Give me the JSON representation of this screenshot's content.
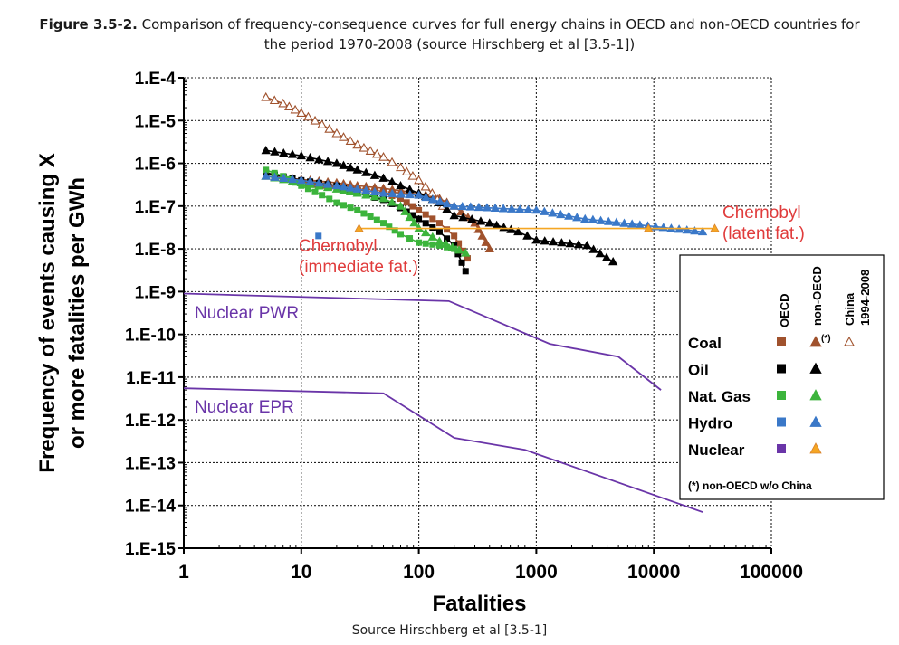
{
  "caption": {
    "figure_label": "Figure 3.5-2.",
    "text_line1": "Comparison of frequency-consequence curves for full energy chains in OECD and non-OECD countries for",
    "text_line2": "the period 1970-2008 (source Hirschberg et al [3.5-1])"
  },
  "footer": {
    "source": "Source Hirschberg et al [3.5-1]"
  },
  "chart_data": {
    "type": "line",
    "xlabel": "Fatalities",
    "ylabel_line1": "Frequency of events causing X",
    "ylabel_line2": "or more fatalities per GWh",
    "x_scale": "log",
    "y_scale": "log",
    "xlim": [
      1,
      100000
    ],
    "ylim": [
      1e-15,
      0.0001
    ],
    "grid": true,
    "x_ticks": [
      {
        "v": 1,
        "label": "1"
      },
      {
        "v": 10,
        "label": "10"
      },
      {
        "v": 100,
        "label": "100"
      },
      {
        "v": 1000,
        "label": "1000"
      },
      {
        "v": 10000,
        "label": "10000"
      },
      {
        "v": 100000,
        "label": "100000"
      }
    ],
    "y_ticks": [
      {
        "v": 0.0001,
        "label": "1.E-4"
      },
      {
        "v": 1e-05,
        "label": "1.E-5"
      },
      {
        "v": 1e-06,
        "label": "1.E-6"
      },
      {
        "v": 1e-07,
        "label": "1.E-7"
      },
      {
        "v": 1e-08,
        "label": "1.E-8"
      },
      {
        "v": 1e-09,
        "label": "1.E-9"
      },
      {
        "v": 1e-10,
        "label": "1.E-10"
      },
      {
        "v": 1e-11,
        "label": "1.E-11"
      },
      {
        "v": 1e-12,
        "label": "1.E-12"
      },
      {
        "v": 1e-13,
        "label": "1.E-13"
      },
      {
        "v": 1e-14,
        "label": "1.E-14"
      },
      {
        "v": 1e-15,
        "label": "1.E-15"
      }
    ],
    "colors": {
      "coal": "#a0522d",
      "oil": "#000000",
      "gas": "#3cb43c",
      "hydro": "#3a78c8",
      "nuclear": "#6a35a8",
      "nuclear_nonoecd": "#f5a623",
      "annotation": "#e03c3c"
    },
    "series": [
      {
        "id": "coal-oecd",
        "color": "#a0522d",
        "marker": "square",
        "points": [
          [
            5,
            6e-07
          ],
          [
            7,
            4.5e-07
          ],
          [
            10,
            3.5e-07
          ],
          [
            15,
            3e-07
          ],
          [
            20,
            2.7e-07
          ],
          [
            30,
            2.4e-07
          ],
          [
            50,
            2e-07
          ],
          [
            70,
            1.5e-07
          ],
          [
            100,
            8e-08
          ],
          [
            150,
            4e-08
          ],
          [
            200,
            2e-08
          ],
          [
            260,
            6e-09
          ]
        ]
      },
      {
        "id": "coal-nonoecd",
        "color": "#a0522d",
        "marker": "triangle",
        "points": [
          [
            5,
            5e-07
          ],
          [
            10,
            4.2e-07
          ],
          [
            20,
            3.5e-07
          ],
          [
            30,
            3e-07
          ],
          [
            50,
            2.6e-07
          ],
          [
            100,
            2e-07
          ],
          [
            150,
            1.5e-07
          ],
          [
            200,
            1e-07
          ],
          [
            300,
            4e-08
          ],
          [
            400,
            1e-08
          ]
        ]
      },
      {
        "id": "coal-china",
        "color": "#a0522d",
        "marker": "open-triangle",
        "points": [
          [
            5,
            3.5e-05
          ],
          [
            7,
            2.5e-05
          ],
          [
            10,
            1.5e-05
          ],
          [
            15,
            8e-06
          ],
          [
            20,
            5e-06
          ],
          [
            30,
            2.7e-06
          ],
          [
            50,
            1.4e-06
          ],
          [
            70,
            8e-07
          ],
          [
            100,
            4e-07
          ],
          [
            130,
            2e-07
          ],
          [
            160,
            1e-07
          ]
        ]
      },
      {
        "id": "oil-oecd",
        "color": "#000000",
        "marker": "square",
        "points": [
          [
            5,
            6e-07
          ],
          [
            10,
            4e-07
          ],
          [
            20,
            3e-07
          ],
          [
            30,
            2e-07
          ],
          [
            50,
            1.4e-07
          ],
          [
            70,
            9e-08
          ],
          [
            100,
            5e-08
          ],
          [
            150,
            2.5e-08
          ],
          [
            200,
            1.2e-08
          ],
          [
            250,
            3e-09
          ]
        ]
      },
      {
        "id": "oil-nonoecd",
        "color": "#000000",
        "marker": "triangle",
        "points": [
          [
            5,
            2e-06
          ],
          [
            10,
            1.5e-06
          ],
          [
            20,
            1e-06
          ],
          [
            30,
            7e-07
          ],
          [
            50,
            4.5e-07
          ],
          [
            70,
            3e-07
          ],
          [
            100,
            2e-07
          ],
          [
            150,
            1.2e-07
          ],
          [
            200,
            6e-08
          ],
          [
            400,
            4e-08
          ],
          [
            700,
            2.5e-08
          ],
          [
            1000,
            1.6e-08
          ],
          [
            2700,
            1.2e-08
          ],
          [
            4500,
            5e-09
          ]
        ]
      },
      {
        "id": "gas-oecd",
        "color": "#3cb43c",
        "marker": "square",
        "points": [
          [
            5,
            7e-07
          ],
          [
            7,
            5e-07
          ],
          [
            10,
            3e-07
          ],
          [
            15,
            1.8e-07
          ],
          [
            20,
            1.2e-07
          ],
          [
            30,
            8e-08
          ],
          [
            50,
            4e-08
          ],
          [
            70,
            2.2e-08
          ],
          [
            100,
            1.4e-08
          ],
          [
            150,
            1.2e-08
          ],
          [
            200,
            1e-08
          ]
        ]
      },
      {
        "id": "gas-nonoecd",
        "color": "#3cb43c",
        "marker": "triangle",
        "points": [
          [
            5,
            5e-07
          ],
          [
            10,
            3.5e-07
          ],
          [
            20,
            2.5e-07
          ],
          [
            30,
            2e-07
          ],
          [
            50,
            1.5e-07
          ],
          [
            70,
            1e-07
          ],
          [
            100,
            3e-08
          ],
          [
            150,
            1.5e-08
          ],
          [
            250,
            8e-09
          ]
        ]
      },
      {
        "id": "hydro-oecd",
        "color": "#3a78c8",
        "marker": "square",
        "points": [
          [
            14,
            2e-08
          ]
        ]
      },
      {
        "id": "hydro-nonoecd",
        "color": "#3a78c8",
        "marker": "triangle",
        "points": [
          [
            5,
            5e-07
          ],
          [
            10,
            4e-07
          ],
          [
            20,
            3e-07
          ],
          [
            30,
            2.5e-07
          ],
          [
            50,
            2e-07
          ],
          [
            100,
            1.8e-07
          ],
          [
            200,
            1e-07
          ],
          [
            1000,
            8e-08
          ],
          [
            2600,
            5e-08
          ],
          [
            26000,
            2.5e-08
          ]
        ]
      },
      {
        "id": "nuclear-nonoecd",
        "color": "#f5a623",
        "marker": "triangle",
        "points": [
          [
            31,
            3e-08
          ],
          [
            9000,
            3e-08
          ],
          [
            33000,
            3e-08
          ]
        ]
      },
      {
        "id": "nuclear-pwr",
        "color": "#6a35a8",
        "marker": "none",
        "points": [
          [
            1,
            9e-10
          ],
          [
            180,
            6e-10
          ],
          [
            1300,
            6e-11
          ],
          [
            5000,
            3e-11
          ],
          [
            11500,
            5e-12
          ]
        ]
      },
      {
        "id": "nuclear-epr",
        "color": "#6a35a8",
        "marker": "none",
        "points": [
          [
            1,
            5.5e-12
          ],
          [
            50,
            4.2e-12
          ],
          [
            200,
            3.8e-13
          ],
          [
            800,
            2e-13
          ],
          [
            26000,
            7e-15
          ]
        ]
      }
    ],
    "annotations": [
      {
        "id": "chernobyl-latent",
        "line1": "Chernobyl",
        "line2": "(latent fat.)",
        "color": "#e03c3c"
      },
      {
        "id": "chernobyl-immediate",
        "line1": "Chernobyl",
        "line2": "(immediate fat.)",
        "color": "#e03c3c"
      },
      {
        "id": "nuclear-pwr-label",
        "line1": "Nuclear PWR",
        "color": "#6a35a8"
      },
      {
        "id": "nuclear-epr-label",
        "line1": "Nuclear EPR",
        "color": "#6a35a8"
      }
    ],
    "legend": {
      "placement": "right",
      "col_oecd": "OECD",
      "col_nonoecd": "non-OECD",
      "col_china_line1": "China",
      "col_china_line2": "1994-2008",
      "asterisk_mark": "(*)",
      "footnote": "(*) non-OECD w/o China",
      "rows": [
        {
          "label": "Coal",
          "color": "#a0522d",
          "nonoecd_color": "#a0522d",
          "china": true
        },
        {
          "label": "Oil",
          "color": "#000000",
          "nonoecd_color": "#000000",
          "china": false
        },
        {
          "label": "Nat. Gas",
          "color": "#3cb43c",
          "nonoecd_color": "#3cb43c",
          "china": false
        },
        {
          "label": "Hydro",
          "color": "#3a78c8",
          "nonoecd_color": "#3a78c8",
          "china": false
        },
        {
          "label": "Nuclear",
          "color": "#6a35a8",
          "nonoecd_color": "#f5a623",
          "china": false
        }
      ]
    }
  }
}
